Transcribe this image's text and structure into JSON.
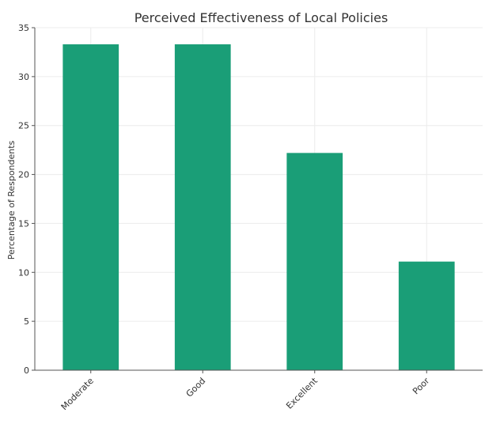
{
  "chart_data": {
    "type": "bar",
    "title": "Perceived Effectiveness of Local Policies",
    "xlabel": "",
    "ylabel": "Percentage of Respondents",
    "categories": [
      "Moderate",
      "Good",
      "Excellent",
      "Poor"
    ],
    "values": [
      33.3,
      33.3,
      22.2,
      11.1
    ],
    "ylim": [
      0,
      35
    ],
    "yticks": [
      0,
      5,
      10,
      15,
      20,
      25,
      30,
      35
    ],
    "grid": true,
    "bar_color": "#1a9e77"
  }
}
